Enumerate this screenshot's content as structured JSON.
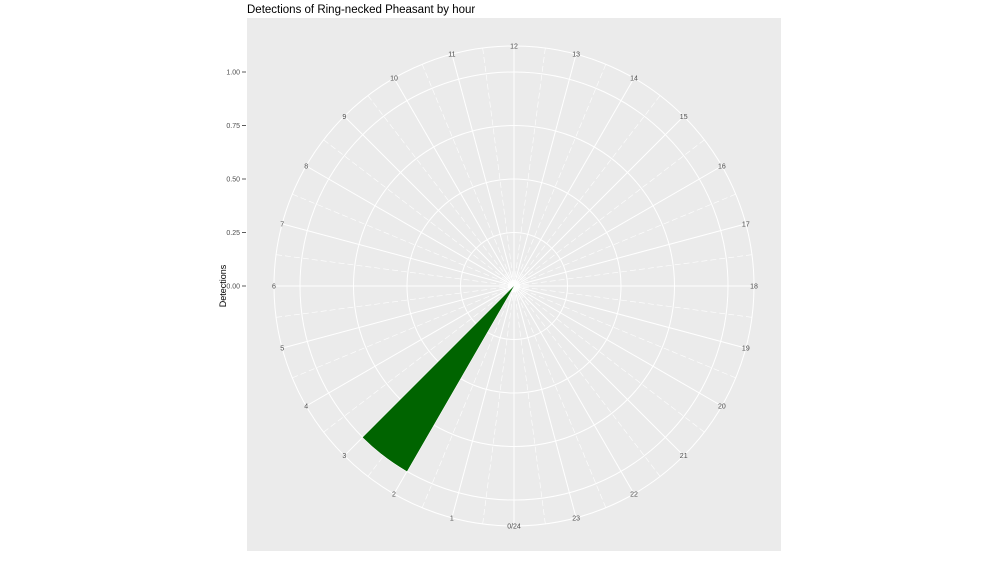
{
  "chart_data": {
    "type": "bar",
    "coordinates": "polar",
    "title": "Detections of Ring-necked Pheasant by hour",
    "xlabel": "",
    "ylabel": "Detections",
    "x_ticks": [
      "0/24",
      "1",
      "2",
      "3",
      "4",
      "5",
      "6",
      "7",
      "8",
      "9",
      "10",
      "11",
      "12",
      "13",
      "14",
      "15",
      "16",
      "17",
      "18",
      "19",
      "20",
      "21",
      "22",
      "23"
    ],
    "y_ticks": [
      "0.00",
      "0.25",
      "0.50",
      "0.75",
      "1.00"
    ],
    "ylim": [
      0,
      1.12
    ],
    "xlim": [
      0,
      24
    ],
    "bins": [
      {
        "start": 2,
        "end": 3,
        "value": 1
      }
    ],
    "bar_color": "#006400",
    "panel_background": "#EBEBEB",
    "grid": true
  }
}
